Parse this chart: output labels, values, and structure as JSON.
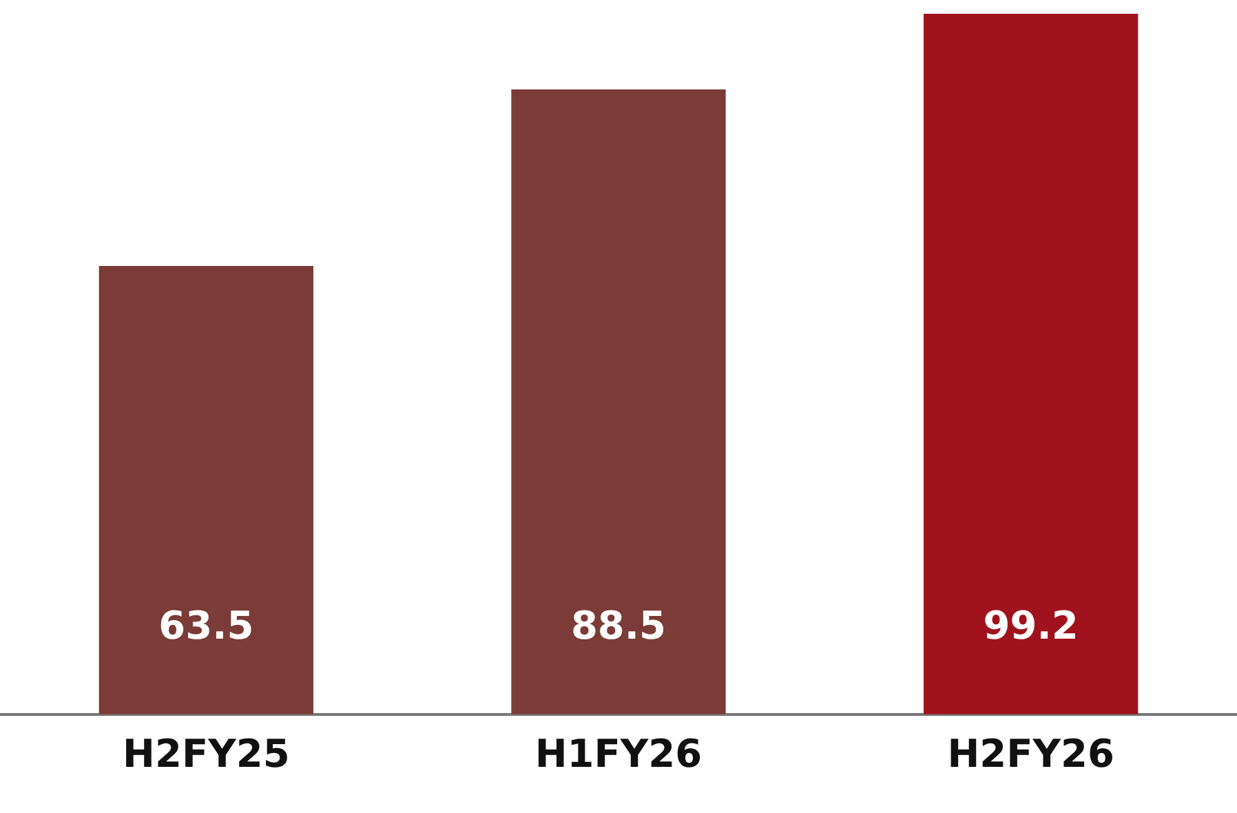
{
  "chart_data": {
    "type": "bar",
    "categories": [
      "H2FY25",
      "H1FY26",
      "H2FY26"
    ],
    "values": [
      63.5,
      88.5,
      99.2
    ],
    "colors": [
      "#7b3b36",
      "#7b3b36",
      "#a0121c"
    ],
    "data_labels": true,
    "grid": false,
    "legend": false
  }
}
